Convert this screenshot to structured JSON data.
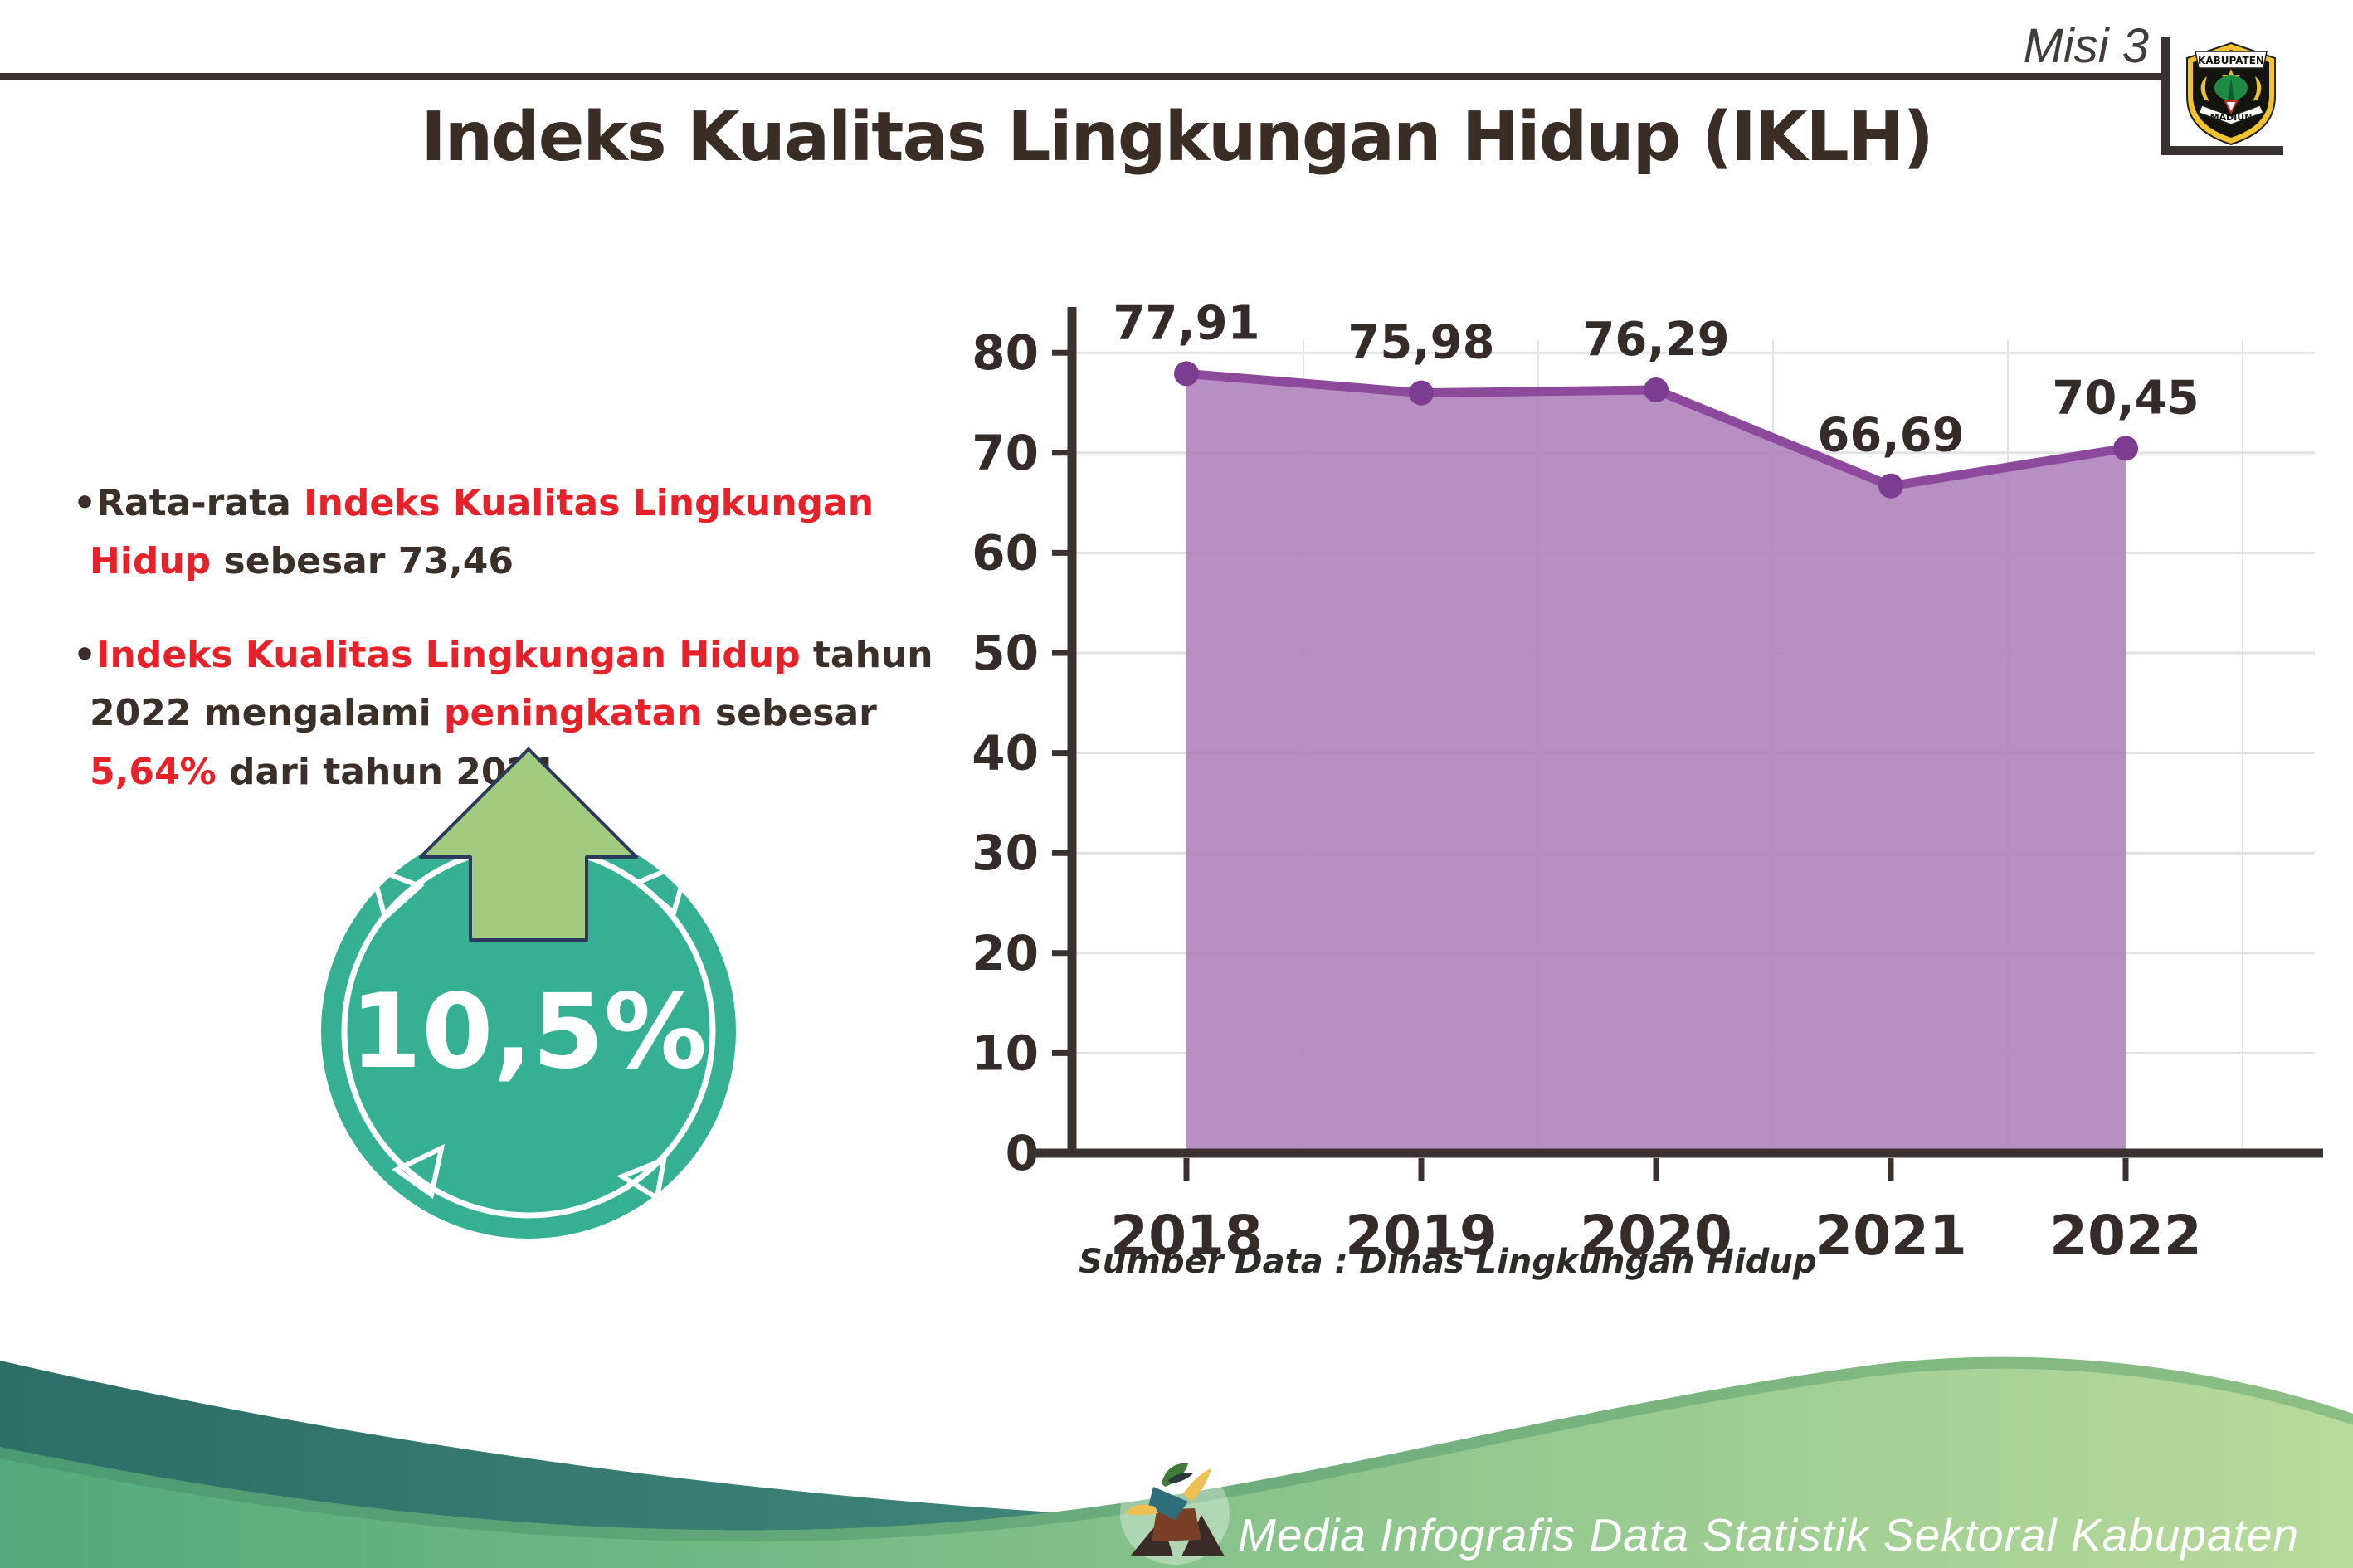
{
  "header": {
    "tag": "Misi 3",
    "title": "Indeks Kualitas Lingkungan Hidup (IKLH)",
    "logo_top": "KABUPATEN",
    "logo_bottom": "MADIUN"
  },
  "left": {
    "bullets": [
      {
        "runs": [
          {
            "text": "•Rata-rata ",
            "style": "dark"
          },
          {
            "text": "Indeks Kualitas Lingkungan Hidup",
            "style": "red"
          },
          {
            "text": " sebesar 73,46",
            "style": "dark"
          }
        ]
      },
      {
        "runs": [
          {
            "text": "•",
            "style": "dark"
          },
          {
            "text": "Indeks Kualitas Lingkungan Hidup",
            "style": "red"
          },
          {
            "text": " tahun 2022 mengalami ",
            "style": "dark"
          },
          {
            "text": "peningkatan",
            "style": "red"
          },
          {
            "text": " sebesar ",
            "style": "dark"
          },
          {
            "text": "5,64%",
            "style": "red"
          },
          {
            "text": " dari tahun 2021",
            "style": "dark"
          }
        ]
      }
    ],
    "badge": {
      "value": "10,5%",
      "direction": "up"
    }
  },
  "chart_data": {
    "type": "area",
    "categories": [
      "2018",
      "2019",
      "2020",
      "2021",
      "2022"
    ],
    "values": [
      77.91,
      75.98,
      76.29,
      66.69,
      70.45
    ],
    "value_labels": [
      "77,91",
      "75,98",
      "76,29",
      "66,69",
      "70,45"
    ],
    "title": "",
    "xlabel": "",
    "ylabel": "",
    "ylim": [
      0,
      85
    ],
    "yticks": [
      0,
      10,
      20,
      30,
      40,
      50,
      60,
      70,
      80
    ],
    "grid": true,
    "legend": "none",
    "source": "Sumber Data : Dinas Lingkungan Hidup"
  },
  "footer": {
    "credit": "Media Infografis Data Statistik Sektoral Kabupaten Madiun |"
  },
  "colors": {
    "accent_red": "#e62129",
    "text_dark": "#3b2f2a",
    "badge_teal": "#35b093",
    "arrow_green": "#a3cb80",
    "line_purple": "#8d4a9c",
    "area_purple": "#ae80bb",
    "point_purple": "#7c3c8f",
    "footer_teal": "#2d6e68",
    "footer_green": "#53a97b"
  }
}
